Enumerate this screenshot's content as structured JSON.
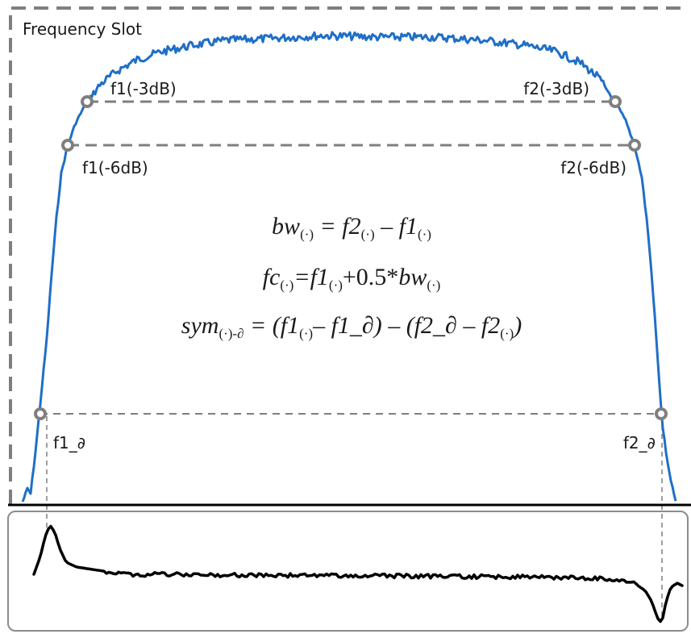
{
  "frequency_slot_label": "Frequency Slot",
  "markers": {
    "f1_3db": "f1(-3dB)",
    "f2_3db": "f2(-3dB)",
    "f1_6db": "f1(-6dB)",
    "f2_6db": "f2(-6dB)",
    "f1_d": "f1_∂",
    "f2_d": "f2_∂"
  },
  "equations": {
    "bw": {
      "lhs": "bw",
      "sub": "(·)",
      "eq": " = ",
      "a": "f2",
      "minus": " – ",
      "b": "f1"
    },
    "fc": {
      "lhs": "fc",
      "sub": "(·)",
      "eq": "=",
      "a": "f1",
      "plus": "+0.5*",
      "b": "bw"
    },
    "sym": {
      "lhs": "sym",
      "sub": "(·)-∂",
      "eq": " = (",
      "a": "f1",
      "m1": "– f1_∂) – (f2_∂ – ",
      "b": "f2",
      "close": ")"
    }
  },
  "colors": {
    "spectrum": "#1f6fc6",
    "derivative": "#000000",
    "dashed": "#7f7f7f",
    "marker": "#7f7f7f",
    "frame": "#7f7f7f"
  }
}
